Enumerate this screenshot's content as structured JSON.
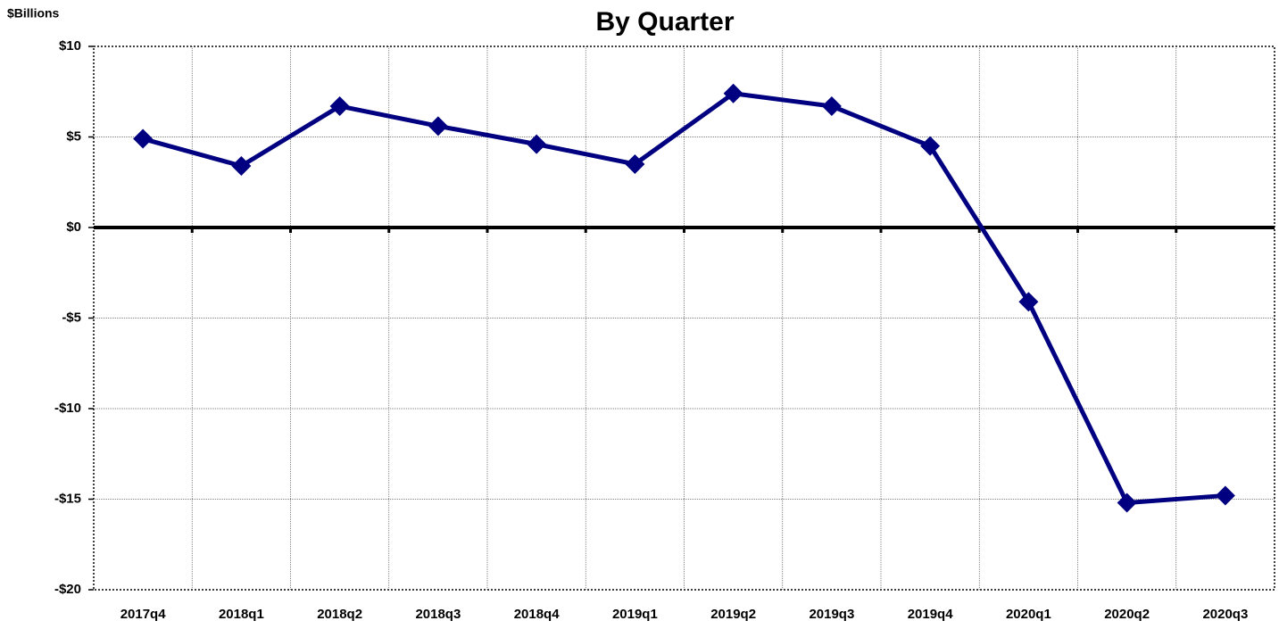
{
  "chart_data": {
    "type": "line",
    "title": "By Quarter",
    "y_axis_label": "$Billions",
    "categories": [
      "2017q4",
      "2018q1",
      "2018q2",
      "2018q3",
      "2018q4",
      "2019q1",
      "2019q2",
      "2019q3",
      "2019q4",
      "2020q1",
      "2020q2",
      "2020q3"
    ],
    "series": [
      {
        "name": "By Quarter",
        "color": "#000080",
        "values": [
          4.9,
          3.4,
          6.7,
          5.6,
          4.6,
          3.5,
          7.4,
          6.7,
          4.5,
          -4.1,
          -15.2,
          -14.8
        ]
      }
    ],
    "ylim": [
      -20,
      10
    ],
    "yticks": [
      {
        "value": -20,
        "label": "-$20"
      },
      {
        "value": -15,
        "label": "-$15"
      },
      {
        "value": -10,
        "label": "-$10"
      },
      {
        "value": -5,
        "label": "-$5"
      },
      {
        "value": 0,
        "label": "$0"
      },
      {
        "value": 5,
        "label": "$5"
      },
      {
        "value": 10,
        "label": "$10"
      }
    ],
    "grid": true,
    "legend": false
  }
}
